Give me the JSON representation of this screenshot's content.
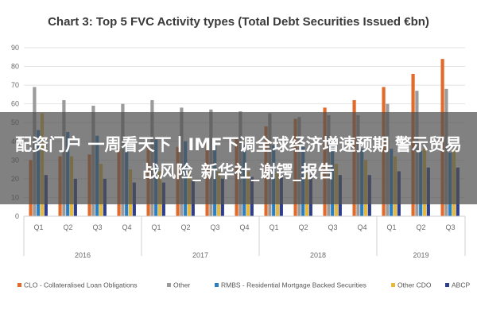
{
  "chart_data": {
    "type": "bar",
    "title": "Chart 3: Top 5 FVC Activity types (Total Debt Securities Issued €bn)",
    "ylim": [
      0,
      90
    ],
    "yticks": [
      0,
      10,
      20,
      30,
      40,
      50,
      60,
      70,
      80,
      90
    ],
    "categories": [
      "Q1",
      "Q2",
      "Q3",
      "Q4",
      "Q1",
      "Q2",
      "Q3",
      "Q4",
      "Q1",
      "Q2",
      "Q3",
      "Q4",
      "Q1",
      "Q2",
      "Q3"
    ],
    "year_groups": [
      {
        "label": "2016",
        "count": 4
      },
      {
        "label": "2017",
        "count": 4
      },
      {
        "label": "2018",
        "count": 4
      },
      {
        "label": "2019",
        "count": 3
      }
    ],
    "series": [
      {
        "name": "CLO - Collateralised Loan Obligations",
        "color": "#e26b2c",
        "values": [
          30,
          32,
          33,
          36,
          37,
          37,
          39,
          42,
          48,
          52,
          58,
          62,
          69,
          76,
          84
        ]
      },
      {
        "name": "Other",
        "color": "#9b9b9b",
        "values": [
          69,
          62,
          59,
          60,
          62,
          58,
          57,
          56,
          55,
          53,
          54,
          54,
          60,
          67,
          68
        ]
      },
      {
        "name": "RMBS - Residential Mortgage Backed Securities",
        "color": "#2b7fc1",
        "values": [
          46,
          45,
          43,
          42,
          41,
          40,
          39,
          38,
          38,
          37,
          37,
          36,
          36,
          35,
          34
        ]
      },
      {
        "name": "Other CDO",
        "color": "#e7b83a",
        "values": [
          55,
          32,
          28,
          25,
          24,
          24,
          24,
          24,
          24,
          23,
          28,
          30,
          32,
          36,
          36
        ]
      },
      {
        "name": "ABCP",
        "color": "#2c3e8c",
        "values": [
          22,
          20,
          20,
          18,
          18,
          19,
          20,
          21,
          22,
          22,
          22,
          22,
          24,
          26,
          26
        ]
      }
    ]
  },
  "overlay": {
    "text": "配资门户 一周看天下丨IMF下调全球经济增速预期 警示贸易战风险_新华社_谢锷_报告"
  }
}
